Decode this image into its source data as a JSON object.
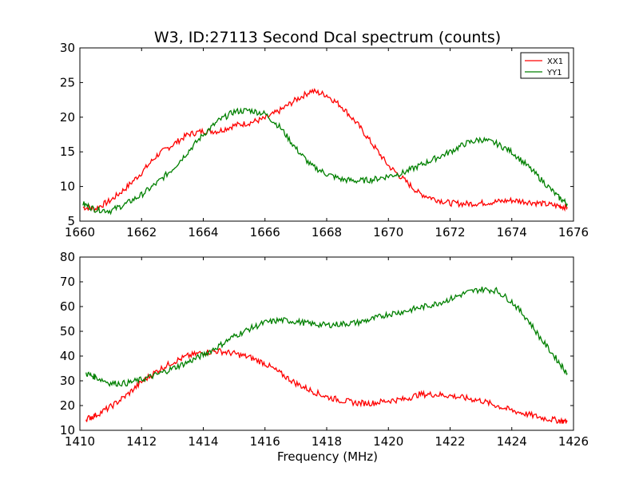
{
  "figure": {
    "title": "W3, ID:27113 Second Dcal spectrum (counts)",
    "xlabel": "Frequency (MHz)"
  },
  "chart_data": [
    {
      "type": "line",
      "title": "W3, ID:27113 Second Dcal spectrum (counts)",
      "xlabel": "",
      "ylabel": "",
      "xlim": [
        1660,
        1676
      ],
      "ylim": [
        5,
        30
      ],
      "xticks": [
        1660,
        1662,
        1664,
        1666,
        1668,
        1670,
        1672,
        1674,
        1676
      ],
      "yticks": [
        5,
        10,
        15,
        20,
        25,
        30
      ],
      "grid": false,
      "legend": {
        "position": "top-right",
        "entries": [
          "XX1",
          "YY1"
        ]
      },
      "series": [
        {
          "name": "XX1",
          "color": "#ff0000",
          "x": [
            1660.1,
            1660.5,
            1661.0,
            1661.5,
            1662.0,
            1662.5,
            1663.0,
            1663.5,
            1664.0,
            1664.5,
            1665.0,
            1665.5,
            1666.0,
            1666.5,
            1667.0,
            1667.5,
            1668.0,
            1668.5,
            1669.0,
            1669.5,
            1670.0,
            1670.5,
            1671.0,
            1671.5,
            1672.0,
            1672.5,
            1673.0,
            1673.5,
            1674.0,
            1674.5,
            1675.0,
            1675.5,
            1675.8
          ],
          "y": [
            7.0,
            6.8,
            8.0,
            9.8,
            12.0,
            14.5,
            16.0,
            17.5,
            18.0,
            18.0,
            18.8,
            19.2,
            19.8,
            21.0,
            22.5,
            23.8,
            23.2,
            21.5,
            19.0,
            16.0,
            13.0,
            11.0,
            9.0,
            8.2,
            7.6,
            7.5,
            7.6,
            7.8,
            8.0,
            7.8,
            7.5,
            7.2,
            7.0
          ]
        },
        {
          "name": "YY1",
          "color": "#008000",
          "x": [
            1660.1,
            1660.5,
            1661.0,
            1661.5,
            1662.0,
            1662.5,
            1663.0,
            1663.5,
            1664.0,
            1664.5,
            1665.0,
            1665.5,
            1666.0,
            1666.5,
            1667.0,
            1667.5,
            1668.0,
            1668.5,
            1669.0,
            1669.5,
            1670.0,
            1670.5,
            1671.0,
            1671.5,
            1672.0,
            1672.5,
            1673.0,
            1673.5,
            1674.0,
            1674.5,
            1675.0,
            1675.5,
            1675.8
          ],
          "y": [
            7.5,
            6.7,
            6.5,
            7.5,
            8.8,
            10.5,
            12.5,
            15.0,
            17.5,
            19.5,
            20.8,
            21.0,
            20.5,
            18.5,
            15.5,
            13.0,
            11.8,
            11.0,
            10.8,
            11.0,
            11.5,
            12.0,
            13.0,
            14.0,
            15.0,
            16.2,
            16.8,
            16.2,
            15.0,
            13.0,
            10.8,
            8.5,
            7.5
          ]
        }
      ]
    },
    {
      "type": "line",
      "title": "",
      "xlabel": "Frequency (MHz)",
      "ylabel": "",
      "xlim": [
        1410,
        1426
      ],
      "ylim": [
        10,
        80
      ],
      "xticks": [
        1410,
        1412,
        1414,
        1416,
        1418,
        1420,
        1422,
        1424,
        1426
      ],
      "yticks": [
        10,
        20,
        30,
        40,
        50,
        60,
        70,
        80
      ],
      "grid": false,
      "series": [
        {
          "color": "#ff0000",
          "x": [
            1410.2,
            1410.5,
            1411.0,
            1411.5,
            1412.0,
            1412.5,
            1413.0,
            1413.5,
            1414.0,
            1414.5,
            1415.0,
            1415.5,
            1416.0,
            1416.5,
            1417.0,
            1417.5,
            1418.0,
            1418.5,
            1419.0,
            1419.5,
            1420.0,
            1420.5,
            1421.0,
            1421.5,
            1422.0,
            1422.5,
            1423.0,
            1423.5,
            1424.0,
            1424.5,
            1425.0,
            1425.5,
            1425.8
          ],
          "y": [
            14.5,
            16.0,
            19.5,
            24.0,
            29.5,
            34.0,
            37.5,
            40.0,
            41.5,
            42.0,
            41.0,
            39.5,
            37.0,
            33.0,
            29.0,
            26.0,
            23.5,
            22.0,
            21.0,
            21.0,
            22.0,
            22.5,
            24.5,
            24.5,
            24.0,
            23.0,
            22.0,
            20.0,
            18.0,
            16.5,
            15.0,
            14.0,
            13.5
          ]
        },
        {
          "color": "#008000",
          "x": [
            1410.2,
            1410.5,
            1411.0,
            1411.5,
            1412.0,
            1412.5,
            1413.0,
            1413.5,
            1414.0,
            1414.5,
            1415.0,
            1415.5,
            1416.0,
            1416.5,
            1417.0,
            1417.5,
            1418.0,
            1418.5,
            1419.0,
            1419.5,
            1420.0,
            1420.5,
            1421.0,
            1421.5,
            1422.0,
            1422.5,
            1423.0,
            1423.5,
            1424.0,
            1424.5,
            1425.0,
            1425.5,
            1425.8
          ],
          "y": [
            33.0,
            31.5,
            29.0,
            29.0,
            30.5,
            32.5,
            35.0,
            37.5,
            40.5,
            44.0,
            48.0,
            51.0,
            53.5,
            54.5,
            54.0,
            53.0,
            52.5,
            53.0,
            53.5,
            55.0,
            57.0,
            58.0,
            59.5,
            61.0,
            63.0,
            65.5,
            67.0,
            66.5,
            62.0,
            55.0,
            46.0,
            38.0,
            33.0
          ]
        }
      ]
    }
  ]
}
